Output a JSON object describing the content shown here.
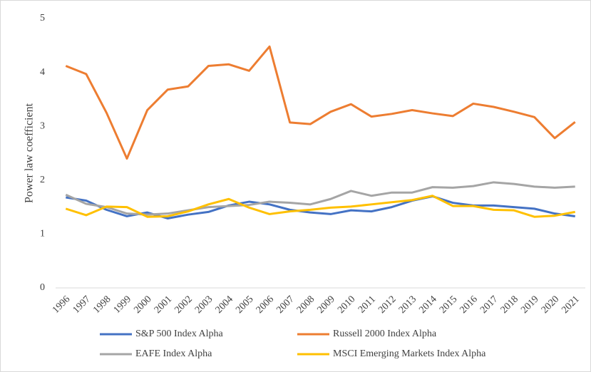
{
  "chart_data": {
    "type": "line",
    "y_label": "Power law coefficient",
    "categories": [
      "1996",
      "1997",
      "1998",
      "1999",
      "2000",
      "2001",
      "2002",
      "2003",
      "2004",
      "2005",
      "2006",
      "2007",
      "2008",
      "2009",
      "2010",
      "2011",
      "2012",
      "2013",
      "2014",
      "2015",
      "2016",
      "2017",
      "2018",
      "2019",
      "2020",
      "2021"
    ],
    "series": [
      {
        "name": "S&P 500 Index Alpha",
        "color": "#4472c4",
        "values": [
          1.68,
          1.62,
          1.45,
          1.33,
          1.4,
          1.29,
          1.36,
          1.41,
          1.53,
          1.6,
          1.55,
          1.45,
          1.4,
          1.37,
          1.44,
          1.42,
          1.5,
          1.62,
          1.7,
          1.58,
          1.53,
          1.53,
          1.5,
          1.47,
          1.38,
          1.33
        ]
      },
      {
        "name": "Russell 2000 Index Alpha",
        "color": "#ed7d31",
        "values": [
          4.12,
          3.97,
          3.25,
          2.4,
          3.3,
          3.68,
          3.74,
          4.12,
          4.15,
          4.03,
          4.48,
          3.07,
          3.04,
          3.27,
          3.41,
          3.18,
          3.23,
          3.3,
          3.24,
          3.19,
          3.42,
          3.36,
          3.27,
          3.17,
          2.78,
          3.08
        ]
      },
      {
        "name": "EAFE Index Alpha",
        "color": "#a5a5a5",
        "values": [
          1.73,
          1.56,
          1.5,
          1.38,
          1.36,
          1.38,
          1.44,
          1.5,
          1.52,
          1.54,
          1.6,
          1.58,
          1.55,
          1.65,
          1.8,
          1.71,
          1.77,
          1.77,
          1.87,
          1.86,
          1.89,
          1.96,
          1.93,
          1.88,
          1.86,
          1.88
        ]
      },
      {
        "name": "MSCI Emerging Markets Index Alpha",
        "color": "#ffc000",
        "values": [
          1.47,
          1.35,
          1.51,
          1.5,
          1.32,
          1.33,
          1.42,
          1.55,
          1.65,
          1.49,
          1.37,
          1.42,
          1.45,
          1.49,
          1.51,
          1.55,
          1.59,
          1.63,
          1.71,
          1.52,
          1.52,
          1.45,
          1.44,
          1.32,
          1.34,
          1.41
        ]
      }
    ],
    "ylim": [
      0,
      5
    ],
    "yticks": [
      0,
      1,
      2,
      3,
      4,
      5
    ],
    "grid": false
  }
}
